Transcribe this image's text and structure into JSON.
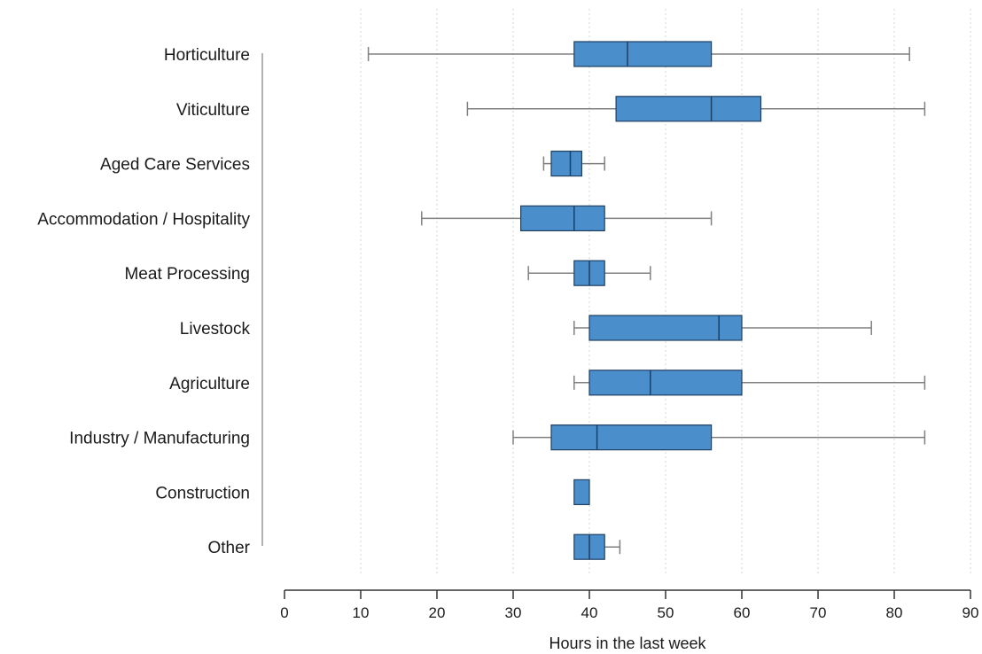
{
  "chart_data": {
    "type": "boxplot",
    "orientation": "horizontal",
    "xlabel": "Hours in the last week",
    "xlim": [
      0,
      90
    ],
    "xticks": [
      0,
      10,
      20,
      30,
      40,
      50,
      60,
      70,
      80,
      90
    ],
    "grid": "vertical dotted",
    "box_color": "#4a8ecb",
    "box_stroke": "#1f3f63",
    "whisker_color": "#808080",
    "categories": [
      "Horticulture",
      "Viticulture",
      "Aged Care Services",
      "Accommodation / Hospitality",
      "Meat Processing",
      "Livestock",
      "Agriculture",
      "Industry / Manufacturing",
      "Construction",
      "Other"
    ],
    "boxes": [
      {
        "category": "Horticulture",
        "min": 11,
        "q1": 38,
        "median": 45,
        "q3": 56,
        "max": 82
      },
      {
        "category": "Viticulture",
        "min": 24,
        "q1": 43.5,
        "median": 56,
        "q3": 62.5,
        "max": 84
      },
      {
        "category": "Aged Care Services",
        "min": 34,
        "q1": 35,
        "median": 37.5,
        "q3": 39,
        "max": 42
      },
      {
        "category": "Accommodation / Hospitality",
        "min": 18,
        "q1": 31,
        "median": 38,
        "q3": 42,
        "max": 56
      },
      {
        "category": "Meat Processing",
        "min": 32,
        "q1": 38,
        "median": 40,
        "q3": 42,
        "max": 48
      },
      {
        "category": "Livestock",
        "min": 38,
        "q1": 40,
        "median": 57,
        "q3": 60,
        "max": 77
      },
      {
        "category": "Agriculture",
        "min": 38,
        "q1": 40,
        "median": 48,
        "q3": 60,
        "max": 84
      },
      {
        "category": "Industry / Manufacturing",
        "min": 30,
        "q1": 35,
        "median": 41,
        "q3": 56,
        "max": 84
      },
      {
        "category": "Construction",
        "min": 38,
        "q1": 38,
        "median": 38,
        "q3": 40,
        "max": 40
      },
      {
        "category": "Other",
        "min": 38,
        "q1": 38,
        "median": 40,
        "q3": 42,
        "max": 44
      }
    ]
  }
}
